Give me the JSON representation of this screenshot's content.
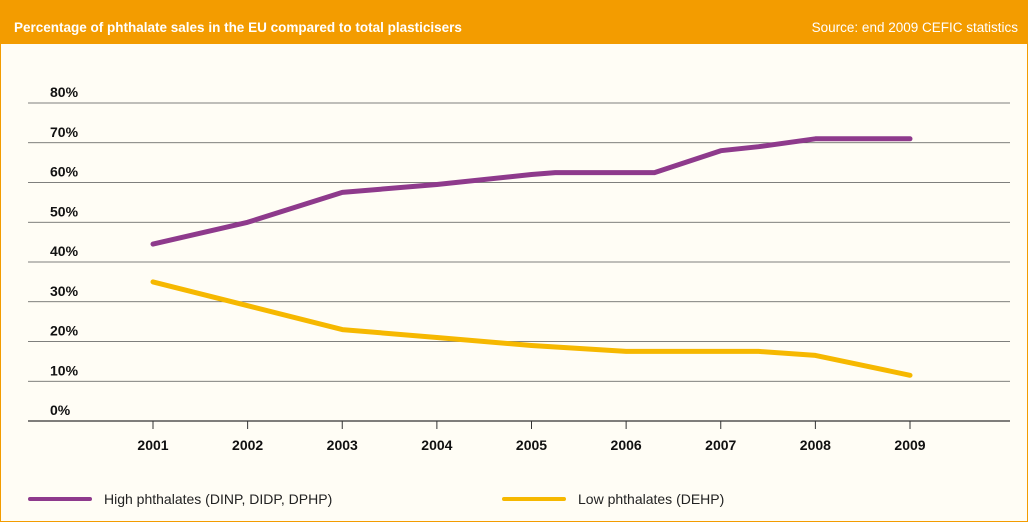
{
  "header": {
    "title": "Percentage of phthalate sales in the EU compared to total plasticisers",
    "source": "Source: end 2009 CEFIC statistics",
    "background_color": "#f39c00"
  },
  "chart_data": {
    "type": "line",
    "title": "Percentage of phthalate sales in the EU compared to total plasticisers",
    "xlabel": "",
    "ylabel": "",
    "categories": [
      "2001",
      "2002",
      "2003",
      "2004",
      "2005",
      "2006",
      "2007",
      "2008",
      "2009"
    ],
    "y_ticks": [
      "0%",
      "10%",
      "20%",
      "30%",
      "40%",
      "50%",
      "60%",
      "70%",
      "80%"
    ],
    "ylim": [
      0,
      80
    ],
    "grid": "horizontal",
    "legend_position": "bottom",
    "series": [
      {
        "name": "High phthalates (DINP, DIDP, DPHP)",
        "color": "#8e3a8c",
        "points": [
          {
            "x": 2001,
            "y": 44.5
          },
          {
            "x": 2002,
            "y": 50
          },
          {
            "x": 2003,
            "y": 57.5
          },
          {
            "x": 2004,
            "y": 59.5
          },
          {
            "x": 2005,
            "y": 62
          },
          {
            "x": 2005.25,
            "y": 62.5
          },
          {
            "x": 2006.3,
            "y": 62.5
          },
          {
            "x": 2007,
            "y": 68
          },
          {
            "x": 2007.4,
            "y": 69
          },
          {
            "x": 2008,
            "y": 71
          },
          {
            "x": 2009,
            "y": 71
          }
        ]
      },
      {
        "name": "Low phthalates (DEHP)",
        "color": "#f6b800",
        "points": [
          {
            "x": 2001,
            "y": 35
          },
          {
            "x": 2002,
            "y": 29
          },
          {
            "x": 2003,
            "y": 23
          },
          {
            "x": 2004,
            "y": 21
          },
          {
            "x": 2005,
            "y": 19
          },
          {
            "x": 2006,
            "y": 17.5
          },
          {
            "x": 2007.4,
            "y": 17.5
          },
          {
            "x": 2008,
            "y": 16.5
          },
          {
            "x": 2009,
            "y": 11.5
          }
        ]
      }
    ]
  }
}
